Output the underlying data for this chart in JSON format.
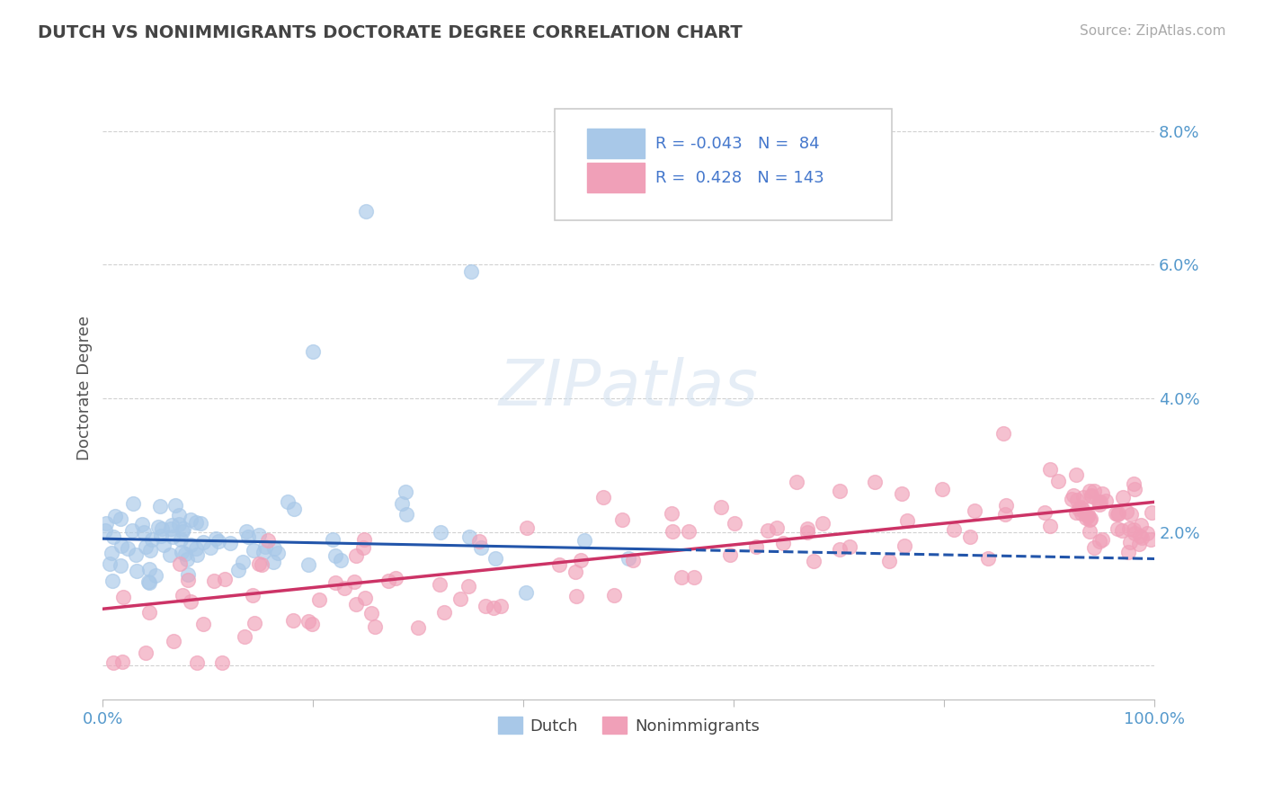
{
  "title": "DUTCH VS NONIMMIGRANTS DOCTORATE DEGREE CORRELATION CHART",
  "source": "Source: ZipAtlas.com",
  "ylabel": "Doctorate Degree",
  "dutch_R": -0.043,
  "dutch_N": 84,
  "nonimm_R": 0.428,
  "nonimm_N": 143,
  "dutch_color": "#a8c8e8",
  "nonimm_color": "#f0a0b8",
  "dutch_line_color": "#2255aa",
  "nonimm_line_color": "#cc3366",
  "background_color": "#ffffff",
  "grid_color": "#cccccc",
  "title_color": "#444444",
  "axis_label_color": "#5599cc",
  "legend_text_color": "#4477cc",
  "xlim": [
    0,
    100
  ],
  "ylim": [
    -0.5,
    8.8
  ],
  "ytick_vals": [
    0,
    2,
    4,
    6,
    8
  ],
  "ytick_labels": [
    "",
    "2.0%",
    "4.0%",
    "6.0%",
    "8.0%"
  ]
}
